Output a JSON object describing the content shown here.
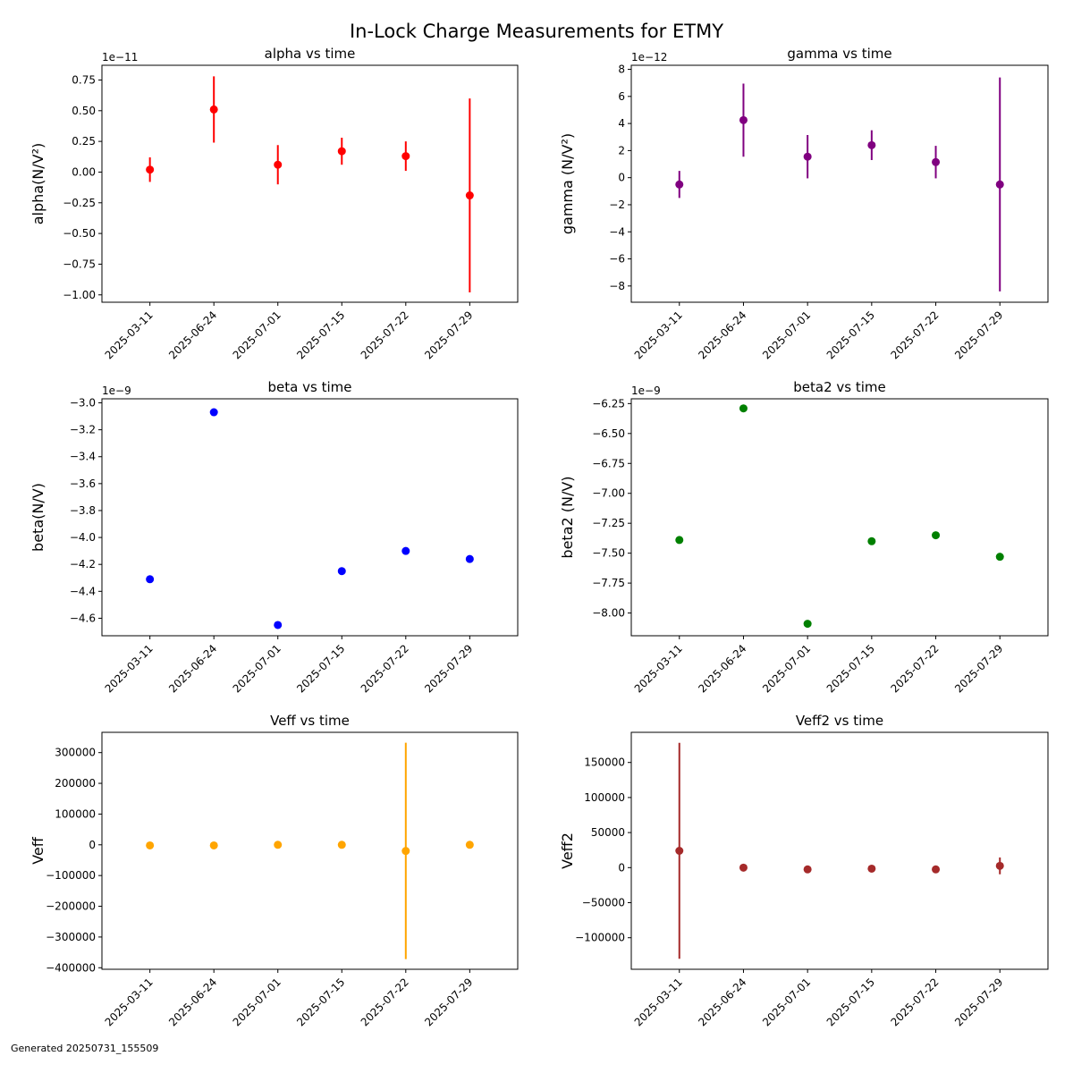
{
  "figure": {
    "title": "In-Lock Charge Measurements for ETMY",
    "footer": "Generated 20250731_155509"
  },
  "chart_data": [
    {
      "type": "scatter",
      "title": "alpha vs time",
      "xlabel": "",
      "ylabel": "alpha(N/V²)",
      "x": [
        "2025-03-11",
        "2025-06-24",
        "2025-07-01",
        "2025-07-15",
        "2025-07-22",
        "2025-07-29"
      ],
      "y": [
        0.02,
        0.51,
        0.06,
        0.17,
        0.13,
        -0.19
      ],
      "yerr": [
        0.1,
        0.27,
        0.16,
        0.11,
        0.12,
        0.79
      ],
      "y_offset_text": "1e−11",
      "yticks": [
        -1.0,
        -0.75,
        -0.5,
        -0.25,
        0.0,
        0.25,
        0.5,
        0.75
      ],
      "ytick_labels": [
        "−1.00",
        "−0.75",
        "−0.50",
        "−0.25",
        "0.00",
        "0.25",
        "0.50",
        "0.75"
      ],
      "ylim": [
        -1.06,
        0.87
      ],
      "color": "#ff0000",
      "grid": false
    },
    {
      "type": "scatter",
      "title": "gamma vs time",
      "xlabel": "",
      "ylabel": "gamma (N/V²)",
      "x": [
        "2025-03-11",
        "2025-06-24",
        "2025-07-01",
        "2025-07-15",
        "2025-07-22",
        "2025-07-29"
      ],
      "y": [
        -0.5,
        4.25,
        1.55,
        2.4,
        1.15,
        -0.5
      ],
      "yerr": [
        1.0,
        2.7,
        1.6,
        1.1,
        1.2,
        7.9
      ],
      "y_offset_text": "1e−12",
      "yticks": [
        -8,
        -6,
        -4,
        -2,
        0,
        2,
        4,
        6,
        8
      ],
      "ytick_labels": [
        "−8",
        "−6",
        "−4",
        "−2",
        "0",
        "2",
        "4",
        "6",
        "8"
      ],
      "ylim": [
        -9.2,
        8.3
      ],
      "color": "#800080",
      "grid": false
    },
    {
      "type": "scatter",
      "title": "beta vs time",
      "xlabel": "",
      "ylabel": "beta(N/V)",
      "x": [
        "2025-03-11",
        "2025-06-24",
        "2025-07-01",
        "2025-07-15",
        "2025-07-22",
        "2025-07-29"
      ],
      "y": [
        -4.31,
        -3.07,
        -4.65,
        -4.25,
        -4.1,
        -4.16
      ],
      "yerr": [
        0.01,
        0.0,
        0.0,
        0.0,
        0.0,
        0.0
      ],
      "y_offset_text": "1e−9",
      "yticks": [
        -4.6,
        -4.4,
        -4.2,
        -4.0,
        -3.8,
        -3.6,
        -3.4,
        -3.2,
        -3.0
      ],
      "ytick_labels": [
        "−4.6",
        "−4.4",
        "−4.2",
        "−4.0",
        "−3.8",
        "−3.6",
        "−3.4",
        "−3.2",
        "−3.0"
      ],
      "ylim": [
        -4.73,
        -2.97
      ],
      "color": "#0000ff",
      "grid": false
    },
    {
      "type": "scatter",
      "title": "beta2 vs time",
      "xlabel": "",
      "ylabel": "beta2 (N/V)",
      "x": [
        "2025-03-11",
        "2025-06-24",
        "2025-07-01",
        "2025-07-15",
        "2025-07-22",
        "2025-07-29"
      ],
      "y": [
        -7.39,
        -6.29,
        -8.09,
        -7.4,
        -7.35,
        -7.53
      ],
      "yerr": [
        0.0,
        0.0,
        0.0,
        0.0,
        0.0,
        0.0
      ],
      "y_offset_text": "1e−9",
      "yticks": [
        -8.0,
        -7.75,
        -7.5,
        -7.25,
        -7.0,
        -6.75,
        -6.5,
        -6.25
      ],
      "ytick_labels": [
        "−8.00",
        "−7.75",
        "−7.50",
        "−7.25",
        "−7.00",
        "−6.75",
        "−6.50",
        "−6.25"
      ],
      "ylim": [
        -8.19,
        -6.21
      ],
      "color": "#008000",
      "grid": false
    },
    {
      "type": "scatter",
      "title": "Veff vs time",
      "xlabel": "",
      "ylabel": "Veff",
      "x": [
        "2025-03-11",
        "2025-06-24",
        "2025-07-01",
        "2025-07-15",
        "2025-07-22",
        "2025-07-29"
      ],
      "y": [
        -2000,
        -2000,
        0,
        0,
        -20000,
        0
      ],
      "yerr": [
        0,
        0,
        0,
        0,
        352000,
        0
      ],
      "y_offset_text": "",
      "yticks": [
        -400000,
        -300000,
        -200000,
        -100000,
        0,
        100000,
        200000,
        300000
      ],
      "ytick_labels": [
        "−400000",
        "−300000",
        "−200000",
        "−100000",
        "0",
        "100000",
        "200000",
        "300000"
      ],
      "ylim": [
        -405000,
        366000
      ],
      "color": "#ffa500",
      "grid": false
    },
    {
      "type": "scatter",
      "title": "Veff2 vs time",
      "xlabel": "",
      "ylabel": "Veff2",
      "x": [
        "2025-03-11",
        "2025-06-24",
        "2025-07-01",
        "2025-07-15",
        "2025-07-22",
        "2025-07-29"
      ],
      "y": [
        24000,
        0,
        -2500,
        -1500,
        -2500,
        2500
      ],
      "yerr": [
        154000,
        0,
        0,
        0,
        0,
        12000
      ],
      "y_offset_text": "",
      "yticks": [
        -100000,
        -50000,
        0,
        50000,
        100000,
        150000
      ],
      "ytick_labels": [
        "−100000",
        "−50000",
        "0",
        "50000",
        "100000",
        "150000"
      ],
      "ylim": [
        -145000,
        193000
      ],
      "color": "#a52a2a",
      "grid": false
    }
  ]
}
